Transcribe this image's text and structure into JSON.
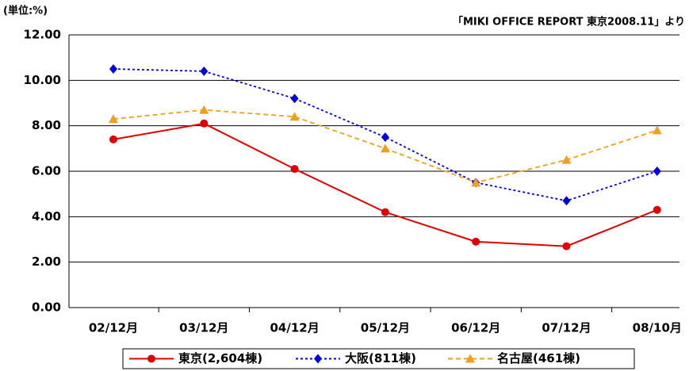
{
  "chart_data": {
    "type": "line",
    "unit_label": "(単位:%)",
    "source": "「MIKI OFFICE REPORT 東京2008.11」より",
    "categories": [
      "02/12月",
      "03/12月",
      "04/12月",
      "05/12月",
      "06/12月",
      "07/12月",
      "08/10月"
    ],
    "series": [
      {
        "name": "東京(2,604棟)",
        "color": "#e00000",
        "marker": "circle",
        "style": "solid",
        "values": [
          7.4,
          8.1,
          6.1,
          4.2,
          2.9,
          2.7,
          4.3
        ]
      },
      {
        "name": "大阪(811棟)",
        "color": "#0000e0",
        "marker": "diamond",
        "style": "dotted",
        "values": [
          10.5,
          10.4,
          9.2,
          7.5,
          5.5,
          4.7,
          6.0
        ]
      },
      {
        "name": "名古屋(461棟)",
        "color": "#f0a020",
        "marker": "triangle",
        "style": "dashed",
        "values": [
          8.3,
          8.7,
          8.4,
          7.0,
          5.5,
          6.5,
          7.8
        ]
      }
    ],
    "ylim": [
      0,
      12
    ],
    "yticks": [
      {
        "value": 0,
        "label": "0.00"
      },
      {
        "value": 2,
        "label": "2.00"
      },
      {
        "value": 4,
        "label": "4.00"
      },
      {
        "value": 6,
        "label": "6.00"
      },
      {
        "value": 8,
        "label": "8.00"
      },
      {
        "value": 10,
        "label": "10.00"
      },
      {
        "value": 12,
        "label": "12.00"
      }
    ],
    "grid": true,
    "legend": "bottom"
  }
}
